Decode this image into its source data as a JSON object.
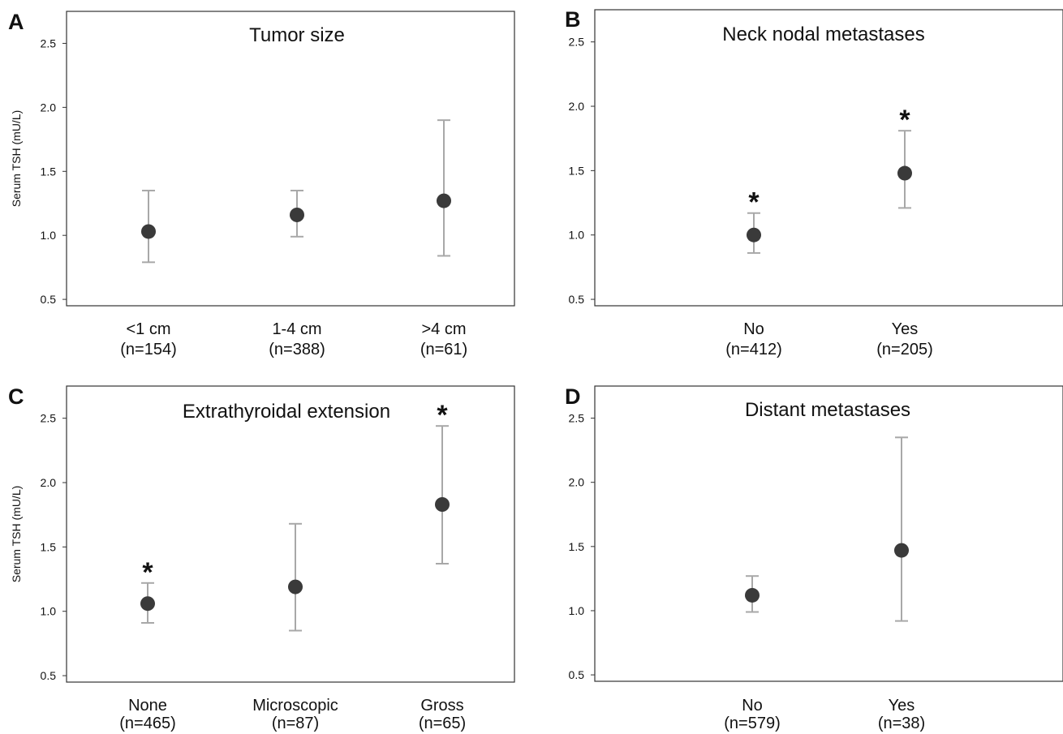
{
  "chart_data": [
    {
      "type": "scatter",
      "panel": "A",
      "title": "Tumor size",
      "ylabel": "Serum TSH (mU/L)",
      "ylim": [
        0.45,
        2.75
      ],
      "yticks": [
        "0.5",
        "1.0",
        "1.5",
        "2.0",
        "2.5"
      ],
      "categories": [
        {
          "label": "<1 cm",
          "n": "(n=154)",
          "mean": 1.03,
          "lower": 0.79,
          "upper": 1.35,
          "star": ""
        },
        {
          "label": "1-4 cm",
          "n": "(n=388)",
          "mean": 1.16,
          "lower": 0.99,
          "upper": 1.35,
          "star": ""
        },
        {
          "label": ">4 cm",
          "n": "(n=61)",
          "mean": 1.27,
          "lower": 0.84,
          "upper": 1.9,
          "star": ""
        }
      ]
    },
    {
      "type": "scatter",
      "panel": "B",
      "title": "Neck nodal metastases",
      "ylabel": "",
      "ylim": [
        0.45,
        2.75
      ],
      "yticks": [
        "0.5",
        "1.0",
        "1.5",
        "2.0",
        "2.5"
      ],
      "categories": [
        {
          "label": "No",
          "n": "(n=412)",
          "mean": 1.0,
          "lower": 0.86,
          "upper": 1.17,
          "star": "*"
        },
        {
          "label": "Yes",
          "n": "(n=205)",
          "mean": 1.48,
          "lower": 1.21,
          "upper": 1.81,
          "star": "*"
        }
      ]
    },
    {
      "type": "scatter",
      "panel": "C",
      "title": "Extrathyroidal extension",
      "ylabel": "Serum TSH (mU/L)",
      "ylim": [
        0.45,
        2.75
      ],
      "yticks": [
        "0.5",
        "1.0",
        "1.5",
        "2.0",
        "2.5"
      ],
      "categories": [
        {
          "label": "None",
          "n": "(n=465)",
          "mean": 1.06,
          "lower": 0.91,
          "upper": 1.22,
          "star": "*"
        },
        {
          "label": "Microscopic",
          "n": "(n=87)",
          "mean": 1.19,
          "lower": 0.85,
          "upper": 1.68,
          "star": ""
        },
        {
          "label": "Gross",
          "n": "(n=65)",
          "mean": 1.83,
          "lower": 1.37,
          "upper": 2.44,
          "star": "*"
        }
      ]
    },
    {
      "type": "scatter",
      "panel": "D",
      "title": "Distant metastases",
      "ylabel": "",
      "ylim": [
        0.45,
        2.75
      ],
      "yticks": [
        "0.5",
        "1.0",
        "1.5",
        "2.0",
        "2.5"
      ],
      "categories": [
        {
          "label": "No",
          "n": "(n=579)",
          "mean": 1.12,
          "lower": 0.99,
          "upper": 1.27,
          "star": ""
        },
        {
          "label": "Yes",
          "n": "(n=38)",
          "mean": 1.47,
          "lower": 0.92,
          "upper": 2.35,
          "star": ""
        }
      ]
    }
  ]
}
